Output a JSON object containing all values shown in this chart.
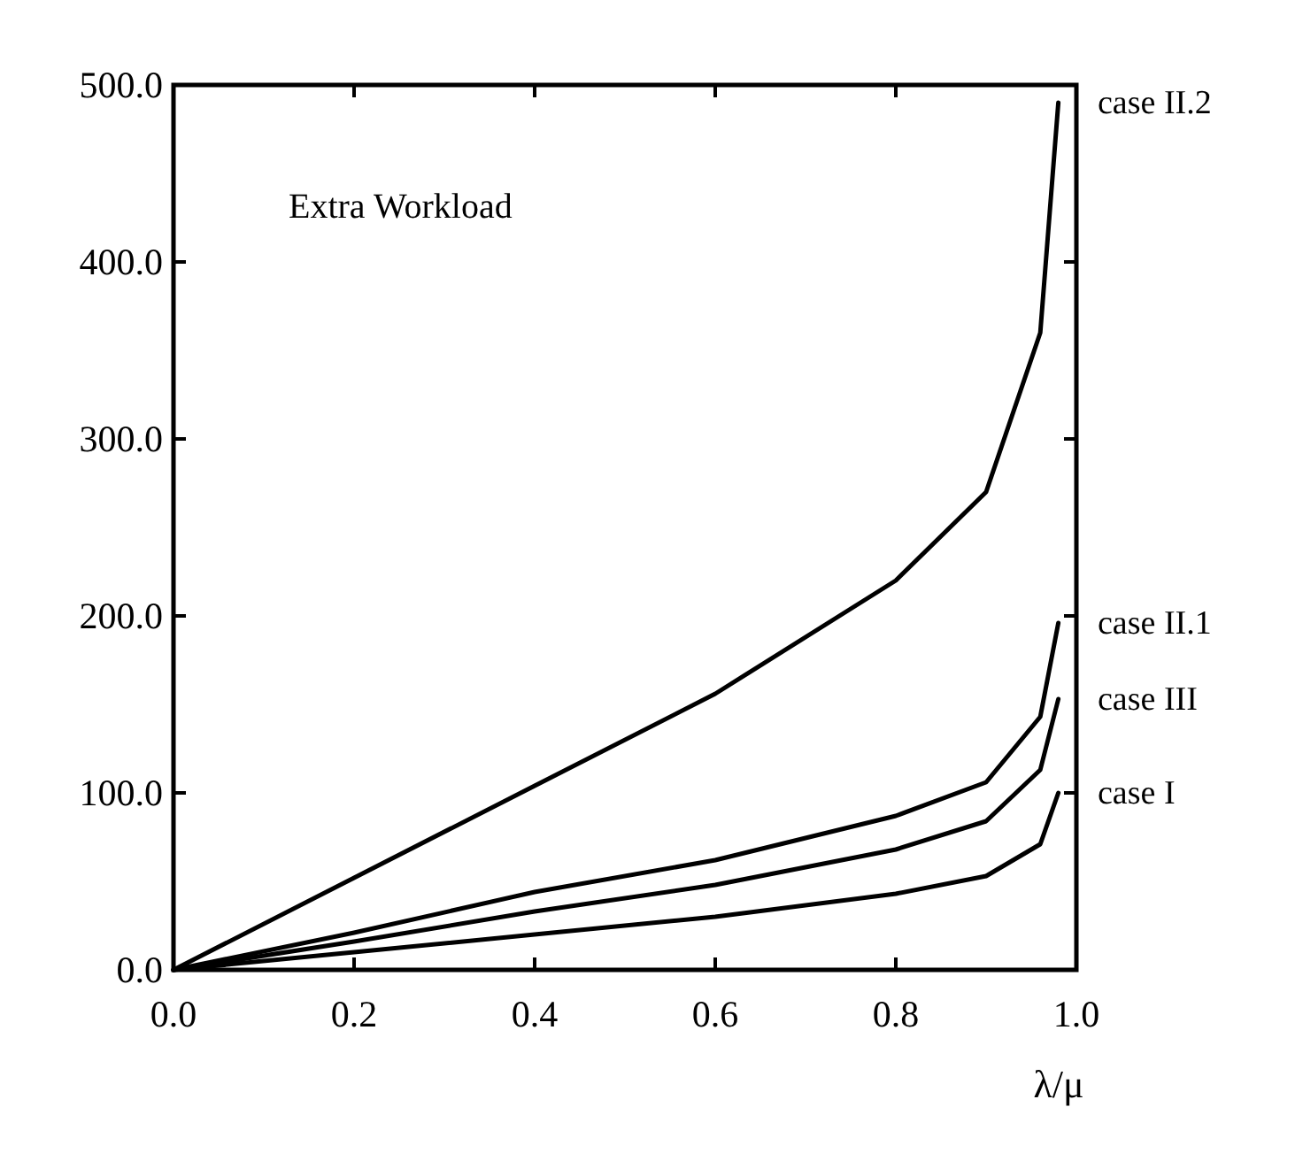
{
  "chart_data": {
    "type": "line",
    "title": "Extra Workload",
    "xlabel": "λ/μ",
    "x": [
      0,
      0.2,
      0.4,
      0.6,
      0.8,
      0.9,
      0.96,
      0.98
    ],
    "series": [
      {
        "name": "case II.2",
        "color": "#000000",
        "values": [
          0,
          52,
          104,
          156,
          220,
          270,
          360,
          490
        ]
      },
      {
        "name": "case II.1",
        "color": "#000000",
        "values": [
          0,
          21,
          44,
          62,
          87,
          106,
          143,
          196
        ]
      },
      {
        "name": "case III",
        "color": "#000000",
        "values": [
          0,
          16,
          33,
          48,
          68,
          84,
          113,
          153
        ]
      },
      {
        "name": "case I",
        "color": "#000000",
        "values": [
          0,
          10,
          20,
          30,
          43,
          53,
          71,
          100
        ]
      }
    ],
    "xlim": [
      0,
      1
    ],
    "ylim": [
      0,
      500
    ],
    "xticks": [
      {
        "value": 0,
        "label": "0.0"
      },
      {
        "value": 0.2,
        "label": "0.2"
      },
      {
        "value": 0.4,
        "label": "0.4"
      },
      {
        "value": 0.6,
        "label": "0.6"
      },
      {
        "value": 0.8,
        "label": "0.8"
      },
      {
        "value": 1,
        "label": "1.0"
      }
    ],
    "yticks": [
      {
        "value": 0,
        "label": "0.0"
      },
      {
        "value": 100,
        "label": "100.0"
      },
      {
        "value": 200,
        "label": "200.0"
      },
      {
        "value": 300,
        "label": "300.0"
      },
      {
        "value": 400,
        "label": "400.0"
      },
      {
        "value": 500,
        "label": "500.0"
      }
    ],
    "grid": false,
    "legend": "right",
    "marker": "none",
    "line_style": "solid"
  }
}
